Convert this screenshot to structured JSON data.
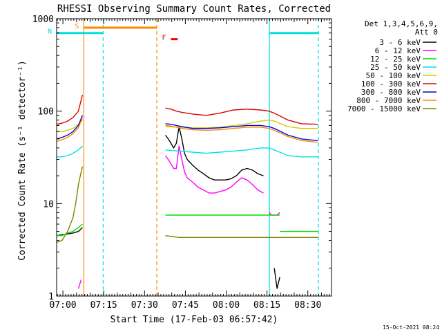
{
  "chart_data": {
    "type": "line",
    "title": "RHESSI Observing Summary Count Rates, Corrected",
    "xlabel": "Start Time (17-Feb-03 06:57:42)",
    "ylabel": "Corrected Count Rate (s⁻¹ detector⁻¹)",
    "yscale": "log",
    "ylim": [
      1,
      1000
    ],
    "xlim_minutes_after_start": [
      0,
      101
    ],
    "yticks": [
      {
        "value": 1,
        "label": "1"
      },
      {
        "value": 10,
        "label": "10"
      },
      {
        "value": 100,
        "label": "100"
      },
      {
        "value": 1000,
        "label": "1000"
      }
    ],
    "xticks": [
      {
        "value": 2.3,
        "label": "07:00"
      },
      {
        "value": 17.3,
        "label": "07:15"
      },
      {
        "value": 32.3,
        "label": "07:30"
      },
      {
        "value": 47.3,
        "label": "07:45"
      },
      {
        "value": 62.3,
        "label": "08:00"
      },
      {
        "value": 77.3,
        "label": "08:15"
      },
      {
        "value": 92.3,
        "label": "08:30"
      }
    ],
    "legend_header": [
      "Det 1,3,4,5,6,9,",
      "Att 0"
    ],
    "legend_position": "right",
    "series": [
      {
        "name": "3 - 6 keV",
        "color": "#000000",
        "segments": [
          [
            [
              0,
              4.5
            ],
            [
              2,
              4.6
            ],
            [
              4,
              4.7
            ],
            [
              6,
              4.8
            ],
            [
              8,
              5.0
            ],
            [
              9.5,
              5.5
            ]
          ],
          [
            [
              40,
              55
            ],
            [
              41,
              50
            ],
            [
              42,
              45
            ],
            [
              43,
              40
            ],
            [
              44,
              45
            ],
            [
              45,
              68
            ],
            [
              46,
              50
            ],
            [
              47,
              35
            ],
            [
              48,
              30
            ],
            [
              50,
              26
            ],
            [
              52,
              23
            ],
            [
              54,
              21
            ],
            [
              56,
              19
            ],
            [
              58,
              18
            ],
            [
              60,
              18
            ],
            [
              62,
              18
            ],
            [
              64,
              18.5
            ],
            [
              66,
              20
            ],
            [
              68,
              23
            ],
            [
              70,
              24
            ],
            [
              72,
              23
            ],
            [
              74,
              21
            ],
            [
              76,
              20
            ]
          ],
          [
            [
              80,
              2.0
            ],
            [
              81,
              1.2
            ],
            [
              82,
              1.6
            ]
          ]
        ]
      },
      {
        "name": "6 - 12 keV",
        "color": "#ff00ff",
        "segments": [
          [
            [
              8,
              1.2
            ],
            [
              9,
              1.5
            ]
          ],
          [
            [
              40,
              33
            ],
            [
              41,
              30
            ],
            [
              42,
              27
            ],
            [
              43,
              24
            ],
            [
              44,
              24
            ],
            [
              45,
              42
            ],
            [
              46,
              30
            ],
            [
              47,
              22
            ],
            [
              48,
              19
            ],
            [
              50,
              17
            ],
            [
              52,
              15
            ],
            [
              54,
              14
            ],
            [
              56,
              13
            ],
            [
              58,
              13
            ],
            [
              60,
              13.5
            ],
            [
              62,
              14
            ],
            [
              64,
              15
            ],
            [
              66,
              17
            ],
            [
              68,
              19
            ],
            [
              70,
              18
            ],
            [
              72,
              16
            ],
            [
              74,
              14
            ],
            [
              76,
              13
            ]
          ],
          [
            [
              78,
              8
            ],
            [
              79,
              7.5
            ],
            [
              80,
              7.5
            ],
            [
              81,
              7.5
            ],
            [
              82,
              8
            ]
          ]
        ]
      },
      {
        "name": "12 - 25 keV",
        "color": "#00dd00",
        "segments": [
          [
            [
              0,
              4.5
            ],
            [
              2,
              4.5
            ],
            [
              4,
              4.8
            ],
            [
              6,
              5.0
            ],
            [
              8,
              5.5
            ],
            [
              9.5,
              6.0
            ]
          ],
          [
            [
              40,
              7.5
            ],
            [
              45,
              7.5
            ],
            [
              50,
              7.5
            ],
            [
              55,
              7.5
            ],
            [
              60,
              7.5
            ],
            [
              65,
              7.5
            ],
            [
              70,
              7.5
            ],
            [
              75,
              7.5
            ],
            [
              80,
              7.5
            ],
            [
              82,
              7.5
            ]
          ],
          [
            [
              82,
              5.0
            ],
            [
              87,
              5.0
            ],
            [
              92,
              5.0
            ],
            [
              96,
              5.0
            ]
          ]
        ]
      },
      {
        "name": "25 - 50 keV",
        "color": "#00e0e0",
        "segments": [
          [
            [
              0,
              32
            ],
            [
              2,
              32
            ],
            [
              4,
              33
            ],
            [
              6,
              35
            ],
            [
              8,
              38
            ],
            [
              9.5,
              42
            ]
          ],
          [
            [
              40,
              38
            ],
            [
              45,
              37
            ],
            [
              50,
              36
            ],
            [
              55,
              35
            ],
            [
              60,
              36
            ],
            [
              65,
              37
            ],
            [
              70,
              38
            ],
            [
              75,
              40
            ],
            [
              78,
              40
            ],
            [
              80,
              38
            ],
            [
              85,
              33
            ],
            [
              90,
              32
            ],
            [
              96,
              32
            ]
          ]
        ]
      },
      {
        "name": "50 - 100 keV",
        "color": "#cccc00",
        "segments": [
          [
            [
              0,
              60
            ],
            [
              2,
              60
            ],
            [
              4,
              62
            ],
            [
              6,
              65
            ],
            [
              8,
              72
            ],
            [
              9.5,
              80
            ]
          ],
          [
            [
              40,
              68
            ],
            [
              45,
              67
            ],
            [
              50,
              66
            ],
            [
              55,
              66
            ],
            [
              60,
              67
            ],
            [
              65,
              70
            ],
            [
              70,
              73
            ],
            [
              75,
              78
            ],
            [
              78,
              80
            ],
            [
              80,
              78
            ],
            [
              85,
              68
            ],
            [
              90,
              65
            ],
            [
              96,
              65
            ]
          ]
        ]
      },
      {
        "name": "100 - 300 keV",
        "color": "#dd0000",
        "segments": [
          [
            [
              0,
              72
            ],
            [
              2,
              74
            ],
            [
              4,
              78
            ],
            [
              6,
              85
            ],
            [
              8,
              100
            ],
            [
              9.5,
              150
            ]
          ],
          [
            [
              40,
              108
            ],
            [
              42,
              105
            ],
            [
              44,
              100
            ],
            [
              46,
              97
            ],
            [
              50,
              93
            ],
            [
              55,
              90
            ],
            [
              60,
              95
            ],
            [
              65,
              103
            ],
            [
              70,
              105
            ],
            [
              75,
              103
            ],
            [
              78,
              100
            ],
            [
              80,
              95
            ],
            [
              85,
              80
            ],
            [
              90,
              73
            ],
            [
              96,
              72
            ]
          ]
        ]
      },
      {
        "name": "300 - 800 keV",
        "color": "#0000dd",
        "segments": [
          [
            [
              0,
              50
            ],
            [
              2,
              52
            ],
            [
              4,
              55
            ],
            [
              6,
              60
            ],
            [
              8,
              70
            ],
            [
              9.5,
              90
            ]
          ],
          [
            [
              40,
              73
            ],
            [
              42,
              72
            ],
            [
              44,
              70
            ],
            [
              46,
              68
            ],
            [
              50,
              65
            ],
            [
              55,
              65
            ],
            [
              60,
              66
            ],
            [
              65,
              68
            ],
            [
              70,
              70
            ],
            [
              75,
              70
            ],
            [
              78,
              68
            ],
            [
              80,
              65
            ],
            [
              85,
              55
            ],
            [
              90,
              50
            ],
            [
              96,
              48
            ]
          ]
        ]
      },
      {
        "name": "800 - 7000 keV",
        "color": "#ff8800",
        "segments": [
          [
            [
              0,
              47
            ],
            [
              2,
              49
            ],
            [
              4,
              52
            ],
            [
              6,
              57
            ],
            [
              8,
              66
            ],
            [
              9.5,
              85
            ]
          ],
          [
            [
              40,
              70
            ],
            [
              42,
              69
            ],
            [
              44,
              67
            ],
            [
              46,
              65
            ],
            [
              50,
              63
            ],
            [
              55,
              62
            ],
            [
              60,
              63
            ],
            [
              65,
              65
            ],
            [
              70,
              67
            ],
            [
              75,
              67
            ],
            [
              78,
              65
            ],
            [
              80,
              62
            ],
            [
              85,
              53
            ],
            [
              90,
              48
            ],
            [
              96,
              46
            ]
          ]
        ]
      },
      {
        "name": "7000 - 15000 keV",
        "color": "#808000",
        "segments": [
          [
            [
              0,
              3.8
            ],
            [
              2,
              4.0
            ],
            [
              4,
              5.0
            ],
            [
              6,
              7.0
            ],
            [
              7,
              10
            ],
            [
              8,
              16
            ],
            [
              9,
              22
            ],
            [
              9.5,
              25
            ]
          ],
          [
            [
              40,
              4.5
            ],
            [
              45,
              4.3
            ],
            [
              50,
              4.3
            ],
            [
              55,
              4.3
            ],
            [
              60,
              4.3
            ],
            [
              65,
              4.3
            ],
            [
              70,
              4.3
            ],
            [
              75,
              4.3
            ],
            [
              80,
              4.3
            ],
            [
              85,
              4.3
            ],
            [
              90,
              4.3
            ],
            [
              96,
              4.3
            ]
          ]
        ]
      }
    ],
    "annotations": [
      {
        "label": "S",
        "color": "#ff8800",
        "x_range": [
          10,
          36.8
        ],
        "y": 800
      },
      {
        "label": "N",
        "color": "#00e0e0",
        "x_range": [
          0,
          17.1
        ],
        "y": 700
      },
      {
        "label": "F",
        "color": "#ee0000",
        "x_range": [
          42,
          44.5
        ],
        "y": 600
      },
      {
        "label": "",
        "color": "#00e0e0",
        "x_range": [
          78.2,
          96.2
        ],
        "y": 700
      }
    ],
    "vlines": [
      {
        "x": 10.0,
        "color": "#ff8800",
        "style": "solid"
      },
      {
        "x": 17.1,
        "color": "#00e0e0",
        "style": "dashed"
      },
      {
        "x": 36.8,
        "color": "#ff8800",
        "style": "dashed"
      },
      {
        "x": 78.2,
        "color": "#00e0e0",
        "style": "solid"
      },
      {
        "x": 96.2,
        "color": "#00e0e0",
        "style": "dashed"
      }
    ]
  },
  "timestamp": "15-Oct-2021 08:24"
}
